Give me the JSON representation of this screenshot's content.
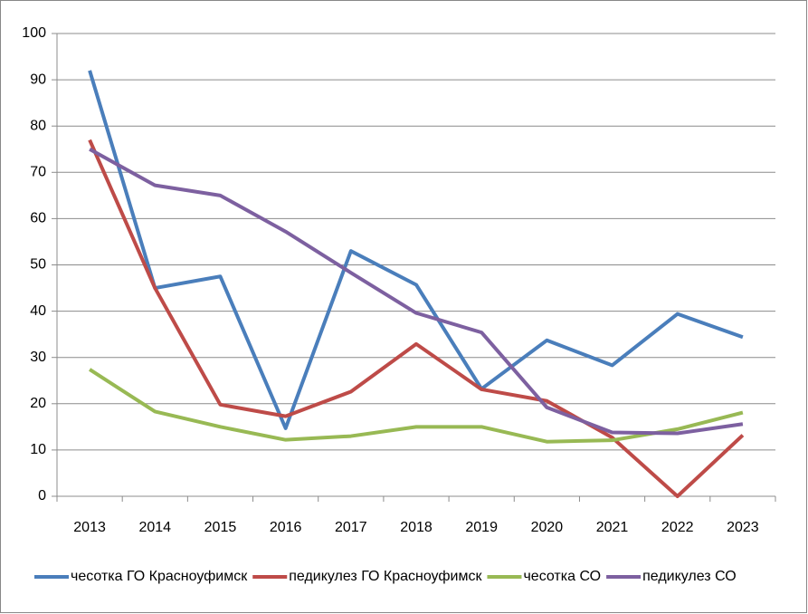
{
  "chart_data": {
    "type": "line",
    "categories": [
      "2013",
      "2014",
      "2015",
      "2016",
      "2017",
      "2018",
      "2019",
      "2020",
      "2021",
      "2022",
      "2023"
    ],
    "series": [
      {
        "name": "чесотка ГО Красноуфимск",
        "color": "#4a7ebb",
        "values": [
          92,
          45,
          47.5,
          14.7,
          53,
          45.7,
          23.2,
          33.7,
          28.3,
          39.4,
          34.4
        ]
      },
      {
        "name": "педикулез ГО Красноуфимск",
        "color": "#be4b48",
        "values": [
          77,
          45,
          19.8,
          17.3,
          22.6,
          32.9,
          23.1,
          20.6,
          12.7,
          0,
          13.2
        ]
      },
      {
        "name": "чесотка СО",
        "color": "#98b954",
        "values": [
          27.4,
          18.3,
          15,
          12.2,
          13,
          15,
          15,
          11.8,
          12.1,
          14.5,
          18.1
        ]
      },
      {
        "name": "педикулез СО",
        "color": "#7d60a0",
        "values": [
          75,
          67.2,
          65,
          57.2,
          48.3,
          39.6,
          35.4,
          19.2,
          13.8,
          13.6,
          15.6
        ]
      }
    ],
    "ylim": [
      0,
      100
    ],
    "yticks": [
      0,
      10,
      20,
      30,
      40,
      50,
      60,
      70,
      80,
      90,
      100
    ],
    "grid": true,
    "legend": "bottom"
  }
}
